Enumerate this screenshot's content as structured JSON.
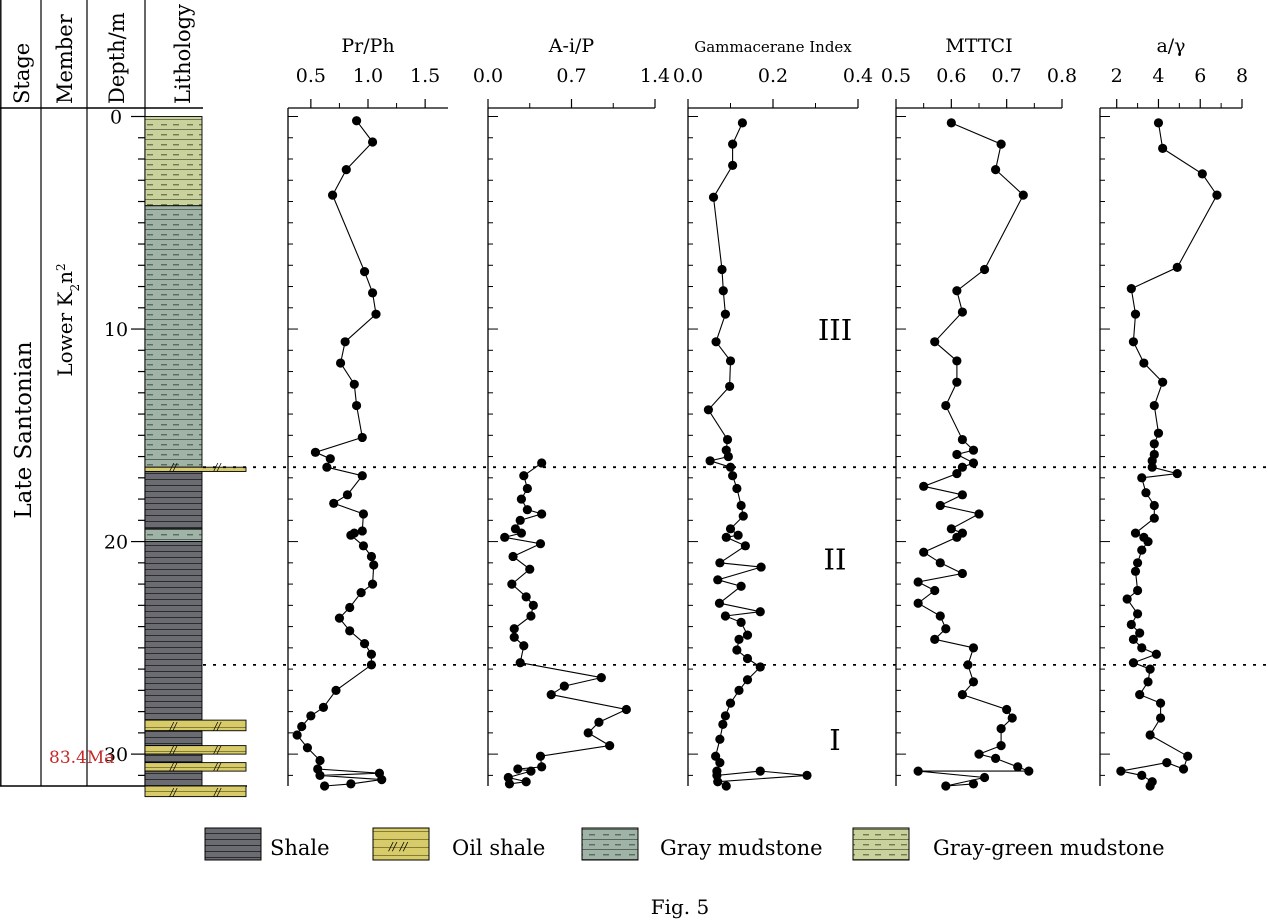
{
  "figure": {
    "caption": "Fig. 5",
    "column_headers": {
      "stage": "Stage",
      "member": "Member",
      "depth": "Depth/m",
      "lithology": "Lithology"
    },
    "stage_text": "Late  Santonian",
    "member_text": "Lower K",
    "member_sub": "2",
    "member_tail": "n",
    "member_sup": "2",
    "age_label": "83.4Ma",
    "depth_ticks": [
      "0",
      "10",
      "20",
      "30"
    ]
  },
  "colors": {
    "shale": "#6b6b72",
    "oil_shale": "#d8cc6a",
    "gray_mudstone": "#9fb3a6",
    "gray_green_mudstone": "#c9d29c"
  },
  "legend": [
    {
      "key": "shale",
      "label": "Shale"
    },
    {
      "key": "oil_shale",
      "label": "Oil shale"
    },
    {
      "key": "gray_mudstone",
      "label": "Gray mudstone"
    },
    {
      "key": "gray_green_mudstone",
      "label": "Gray-green mudstone"
    }
  ],
  "lithology": [
    {
      "type": "gray_green_mudstone",
      "from": 0,
      "to": 4.2
    },
    {
      "type": "gray_mudstone",
      "from": 4.2,
      "to": 16.5
    },
    {
      "type": "oil_shale",
      "from": 16.5,
      "to": 16.7
    },
    {
      "type": "shale",
      "from": 16.7,
      "to": 19.4
    },
    {
      "type": "gray_mudstone",
      "from": 19.4,
      "to": 20.0
    },
    {
      "type": "shale",
      "from": 20.0,
      "to": 28.4
    },
    {
      "type": "oil_shale",
      "from": 28.4,
      "to": 28.9
    },
    {
      "type": "shale",
      "from": 28.9,
      "to": 29.6
    },
    {
      "type": "oil_shale",
      "from": 29.6,
      "to": 30.0
    },
    {
      "type": "shale",
      "from": 30.0,
      "to": 30.4
    },
    {
      "type": "oil_shale",
      "from": 30.4,
      "to": 30.8
    },
    {
      "type": "shale",
      "from": 30.8,
      "to": 31.5
    },
    {
      "type": "oil_shale",
      "from": 31.5,
      "to": 32.0
    }
  ],
  "chart_data": {
    "type": "line",
    "y_axis": {
      "range": [
        -0.4,
        31.5
      ],
      "reversed": true
    },
    "zone_boundaries": [
      16.5,
      25.8
    ],
    "zones": [
      {
        "label": "III",
        "depth": 10
      },
      {
        "label": "II",
        "depth": 20.8
      },
      {
        "label": "I",
        "depth": 29.3
      }
    ],
    "series": [
      {
        "title": "Pr/Ph",
        "xlim": [
          0.3,
          1.7
        ],
        "xticks": [
          0.5,
          1.0,
          1.5
        ],
        "xtick_labels": [
          "0.5",
          "1.0",
          "1.5"
        ],
        "points": [
          [
            0.9,
            0.2
          ],
          [
            1.04,
            1.2
          ],
          [
            0.81,
            2.5
          ],
          [
            0.69,
            3.7
          ],
          [
            0.97,
            7.3
          ],
          [
            1.04,
            8.3
          ],
          [
            1.07,
            9.3
          ],
          [
            0.8,
            10.6
          ],
          [
            0.76,
            11.6
          ],
          [
            0.88,
            12.6
          ],
          [
            0.9,
            13.6
          ],
          [
            0.95,
            15.1
          ],
          [
            0.54,
            15.8
          ],
          [
            0.67,
            16.1
          ],
          [
            0.64,
            16.5
          ],
          [
            0.95,
            16.9
          ],
          [
            0.82,
            17.8
          ],
          [
            0.7,
            18.2
          ],
          [
            0.96,
            18.7
          ],
          [
            0.95,
            19.5
          ],
          [
            0.88,
            19.6
          ],
          [
            0.85,
            19.7
          ],
          [
            0.96,
            20.2
          ],
          [
            1.03,
            20.7
          ],
          [
            1.05,
            21.1
          ],
          [
            1.04,
            22.0
          ],
          [
            0.94,
            22.4
          ],
          [
            0.84,
            23.1
          ],
          [
            0.75,
            23.6
          ],
          [
            0.84,
            24.2
          ],
          [
            0.97,
            24.8
          ],
          [
            1.03,
            25.3
          ],
          [
            1.03,
            25.8
          ],
          [
            0.72,
            27.0
          ],
          [
            0.61,
            27.8
          ],
          [
            0.5,
            28.2
          ],
          [
            0.42,
            28.7
          ],
          [
            0.38,
            29.1
          ],
          [
            0.47,
            29.7
          ],
          [
            0.58,
            30.3
          ],
          [
            0.56,
            30.7
          ],
          [
            1.1,
            30.9
          ],
          [
            0.58,
            31.0
          ],
          [
            1.12,
            31.2
          ],
          [
            0.85,
            31.4
          ],
          [
            0.62,
            31.5
          ]
        ]
      },
      {
        "title": "A-i/P",
        "xlim": [
          0,
          1.4
        ],
        "xticks": [
          0,
          0.7,
          1.4
        ],
        "xtick_labels": [
          "0.0",
          "0.7",
          "1.4"
        ],
        "points": [
          [
            0.45,
            16.3
          ],
          [
            0.3,
            16.9
          ],
          [
            0.33,
            17.5
          ],
          [
            0.28,
            18.0
          ],
          [
            0.33,
            18.5
          ],
          [
            0.45,
            18.7
          ],
          [
            0.27,
            19.0
          ],
          [
            0.23,
            19.4
          ],
          [
            0.28,
            19.6
          ],
          [
            0.14,
            19.8
          ],
          [
            0.44,
            20.1
          ],
          [
            0.21,
            20.7
          ],
          [
            0.35,
            21.3
          ],
          [
            0.2,
            22.0
          ],
          [
            0.32,
            22.6
          ],
          [
            0.38,
            23.0
          ],
          [
            0.36,
            23.5
          ],
          [
            0.22,
            24.1
          ],
          [
            0.22,
            24.5
          ],
          [
            0.3,
            24.9
          ],
          [
            0.27,
            25.7
          ],
          [
            0.95,
            26.4
          ],
          [
            0.64,
            26.8
          ],
          [
            0.53,
            27.2
          ],
          [
            1.16,
            27.9
          ],
          [
            0.93,
            28.5
          ],
          [
            0.84,
            29.0
          ],
          [
            1.02,
            29.6
          ],
          [
            0.44,
            30.1
          ],
          [
            0.45,
            30.6
          ],
          [
            0.25,
            30.7
          ],
          [
            0.36,
            30.8
          ],
          [
            0.17,
            31.1
          ],
          [
            0.32,
            31.3
          ],
          [
            0.18,
            31.4
          ]
        ]
      },
      {
        "title": "Gammacerane Index",
        "xlim": [
          0,
          0.4
        ],
        "xticks": [
          0,
          0.2,
          0.4
        ],
        "xtick_labels": [
          "0.0",
          "0.2",
          "0.4"
        ],
        "points": [
          [
            0.128,
            0.3
          ],
          [
            0.105,
            1.3
          ],
          [
            0.105,
            2.3
          ],
          [
            0.06,
            3.8
          ],
          [
            0.08,
            7.2
          ],
          [
            0.083,
            8.2
          ],
          [
            0.088,
            9.3
          ],
          [
            0.066,
            10.6
          ],
          [
            0.1,
            11.5
          ],
          [
            0.098,
            12.7
          ],
          [
            0.048,
            13.8
          ],
          [
            0.093,
            15.2
          ],
          [
            0.09,
            15.7
          ],
          [
            0.095,
            16.0
          ],
          [
            0.052,
            16.2
          ],
          [
            0.1,
            16.5
          ],
          [
            0.105,
            16.9
          ],
          [
            0.115,
            17.5
          ],
          [
            0.125,
            18.3
          ],
          [
            0.13,
            18.8
          ],
          [
            0.1,
            19.4
          ],
          [
            0.118,
            19.7
          ],
          [
            0.09,
            19.8
          ],
          [
            0.135,
            20.2
          ],
          [
            0.075,
            21.0
          ],
          [
            0.172,
            21.2
          ],
          [
            0.07,
            21.8
          ],
          [
            0.125,
            22.1
          ],
          [
            0.074,
            22.9
          ],
          [
            0.17,
            23.3
          ],
          [
            0.088,
            23.5
          ],
          [
            0.125,
            23.8
          ],
          [
            0.14,
            24.4
          ],
          [
            0.12,
            24.6
          ],
          [
            0.115,
            25.1
          ],
          [
            0.14,
            25.5
          ],
          [
            0.17,
            25.9
          ],
          [
            0.14,
            26.5
          ],
          [
            0.12,
            27.0
          ],
          [
            0.1,
            27.6
          ],
          [
            0.088,
            28.2
          ],
          [
            0.082,
            28.6
          ],
          [
            0.075,
            29.3
          ],
          [
            0.065,
            30.1
          ],
          [
            0.075,
            30.4
          ],
          [
            0.068,
            30.8
          ],
          [
            0.068,
            31.0
          ],
          [
            0.17,
            30.8
          ],
          [
            0.28,
            31.0
          ],
          [
            0.07,
            31.3
          ],
          [
            0.09,
            31.5
          ]
        ]
      },
      {
        "title": "MTTCI",
        "xlim": [
          0.5,
          0.8
        ],
        "xticks": [
          0.5,
          0.6,
          0.7,
          0.8
        ],
        "xtick_labels": [
          "0.5",
          "0.6",
          "0.7",
          "0.8"
        ],
        "points": [
          [
            0.6,
            0.3
          ],
          [
            0.69,
            1.3
          ],
          [
            0.68,
            2.5
          ],
          [
            0.73,
            3.7
          ],
          [
            0.66,
            7.2
          ],
          [
            0.61,
            8.2
          ],
          [
            0.62,
            9.2
          ],
          [
            0.57,
            10.6
          ],
          [
            0.61,
            11.5
          ],
          [
            0.61,
            12.5
          ],
          [
            0.59,
            13.6
          ],
          [
            0.62,
            15.2
          ],
          [
            0.64,
            15.7
          ],
          [
            0.61,
            15.9
          ],
          [
            0.64,
            16.3
          ],
          [
            0.62,
            16.5
          ],
          [
            0.61,
            16.8
          ],
          [
            0.55,
            17.4
          ],
          [
            0.62,
            17.8
          ],
          [
            0.58,
            18.3
          ],
          [
            0.65,
            18.7
          ],
          [
            0.6,
            19.4
          ],
          [
            0.62,
            19.6
          ],
          [
            0.61,
            19.8
          ],
          [
            0.55,
            20.5
          ],
          [
            0.58,
            21.0
          ],
          [
            0.62,
            21.5
          ],
          [
            0.54,
            21.9
          ],
          [
            0.57,
            22.3
          ],
          [
            0.54,
            22.9
          ],
          [
            0.58,
            23.5
          ],
          [
            0.59,
            24.1
          ],
          [
            0.57,
            24.6
          ],
          [
            0.64,
            25.0
          ],
          [
            0.63,
            25.8
          ],
          [
            0.64,
            26.6
          ],
          [
            0.62,
            27.2
          ],
          [
            0.7,
            27.9
          ],
          [
            0.71,
            28.3
          ],
          [
            0.69,
            28.8
          ],
          [
            0.69,
            29.6
          ],
          [
            0.65,
            30.0
          ],
          [
            0.68,
            30.2
          ],
          [
            0.72,
            30.6
          ],
          [
            0.74,
            30.8
          ],
          [
            0.54,
            30.8
          ],
          [
            0.66,
            31.1
          ],
          [
            0.59,
            31.5
          ],
          [
            0.64,
            31.4
          ]
        ]
      },
      {
        "title": "a/γ",
        "xlim": [
          1.2,
          8.0
        ],
        "xticks": [
          2,
          4,
          6,
          8
        ],
        "xtick_labels": [
          "2",
          "4",
          "6",
          "8"
        ],
        "points": [
          [
            4.0,
            0.3
          ],
          [
            4.2,
            1.5
          ],
          [
            6.1,
            2.7
          ],
          [
            6.8,
            3.7
          ],
          [
            4.9,
            7.1
          ],
          [
            2.7,
            8.1
          ],
          [
            2.9,
            9.3
          ],
          [
            2.8,
            10.6
          ],
          [
            3.3,
            11.6
          ],
          [
            4.2,
            12.5
          ],
          [
            3.8,
            13.6
          ],
          [
            4.0,
            14.9
          ],
          [
            3.8,
            15.4
          ],
          [
            3.8,
            15.9
          ],
          [
            3.7,
            16.2
          ],
          [
            3.7,
            16.5
          ],
          [
            4.9,
            16.8
          ],
          [
            3.2,
            17.0
          ],
          [
            3.4,
            17.7
          ],
          [
            3.8,
            18.3
          ],
          [
            3.8,
            18.9
          ],
          [
            2.9,
            19.6
          ],
          [
            3.3,
            19.8
          ],
          [
            3.5,
            20.0
          ],
          [
            3.2,
            20.4
          ],
          [
            3.0,
            21.0
          ],
          [
            2.9,
            21.4
          ],
          [
            3.0,
            22.3
          ],
          [
            2.5,
            22.7
          ],
          [
            3.0,
            23.4
          ],
          [
            2.7,
            23.9
          ],
          [
            3.1,
            24.3
          ],
          [
            2.8,
            24.6
          ],
          [
            3.2,
            25.0
          ],
          [
            3.9,
            25.3
          ],
          [
            2.8,
            25.7
          ],
          [
            3.6,
            26.0
          ],
          [
            3.5,
            26.6
          ],
          [
            3.1,
            27.2
          ],
          [
            4.1,
            27.6
          ],
          [
            4.1,
            28.3
          ],
          [
            3.6,
            29.1
          ],
          [
            5.4,
            30.1
          ],
          [
            5.2,
            30.7
          ],
          [
            4.4,
            30.4
          ],
          [
            2.2,
            30.8
          ],
          [
            3.2,
            31.0
          ],
          [
            3.7,
            31.3
          ],
          [
            3.6,
            31.5
          ]
        ]
      }
    ]
  }
}
